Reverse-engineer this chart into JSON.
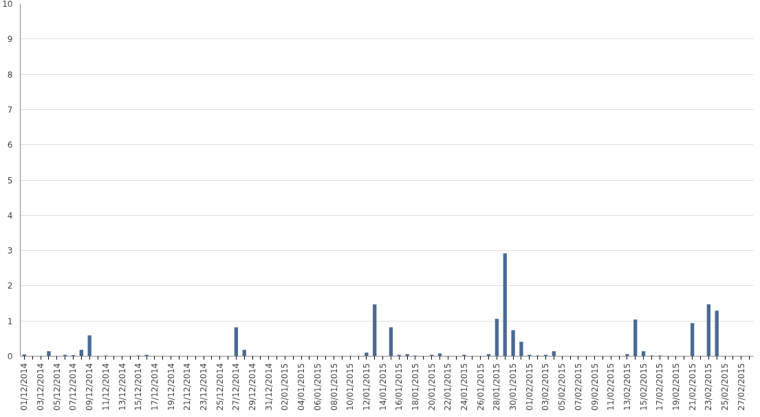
{
  "chart_data": {
    "type": "bar",
    "categories": [
      "01/12/2014",
      null,
      "03/12/2014",
      null,
      "05/12/2014",
      null,
      "07/12/2014",
      null,
      "09/12/2014",
      null,
      "11/12/2014",
      null,
      "13/12/2014",
      null,
      "15/12/2014",
      null,
      "17/12/2014",
      null,
      "19/12/2014",
      null,
      "21/12/2014",
      null,
      "23/12/2014",
      null,
      "25/12/2014",
      null,
      "27/12/2014",
      null,
      "29/12/2014",
      null,
      "31/12/2014",
      null,
      "02/01/2015",
      null,
      "04/01/2015",
      null,
      "06/01/2015",
      null,
      "08/01/2015",
      null,
      "10/01/2015",
      null,
      "12/01/2015",
      null,
      "14/01/2015",
      null,
      "16/01/2015",
      null,
      "18/01/2015",
      null,
      "20/01/2015",
      null,
      "22/01/2015",
      null,
      "24/01/2015",
      null,
      "26/01/2015",
      null,
      "28/01/2015",
      null,
      "30/01/2015",
      null,
      "01/02/2015",
      null,
      "03/02/2015",
      null,
      "05/02/2015",
      null,
      "07/02/2015",
      null,
      "09/02/2015",
      null,
      "11/02/2015",
      null,
      "13/02/2015",
      null,
      "15/02/2015",
      null,
      "17/02/2015",
      null,
      "19/02/2015",
      null,
      "21/02/2015",
      null,
      "23/02/2015",
      null,
      "25/02/2015",
      null,
      "27/02/2015",
      null
    ],
    "values": [
      0.05,
      0,
      0,
      0.14,
      0,
      0.04,
      0.03,
      0.18,
      0.59,
      0,
      0.02,
      0,
      0,
      0,
      0.02,
      0.04,
      0,
      0,
      0,
      0,
      0,
      0,
      0,
      0,
      0,
      0,
      0.82,
      0.18,
      0,
      0,
      0,
      0,
      0,
      0,
      0,
      0,
      0,
      0,
      0,
      0,
      0,
      0,
      0.1,
      1.47,
      0,
      0.82,
      0.04,
      0.06,
      0.02,
      0,
      0.04,
      0.08,
      0,
      0,
      0.04,
      0,
      0,
      0.06,
      1.06,
      2.92,
      0.74,
      0.41,
      0.04,
      0.02,
      0.04,
      0.14,
      0,
      0,
      0,
      0,
      0,
      0,
      0,
      0,
      0.06,
      1.04,
      0.14,
      0.02,
      0.02,
      0,
      0,
      0,
      0.94,
      0,
      1.47,
      1.29,
      0,
      0,
      0,
      0
    ],
    "color": "#4a6a94",
    "ylim": [
      0,
      10
    ],
    "yticks": [
      0,
      1,
      2,
      3,
      4,
      5,
      6,
      7,
      8,
      9,
      10
    ],
    "grid": "y"
  }
}
